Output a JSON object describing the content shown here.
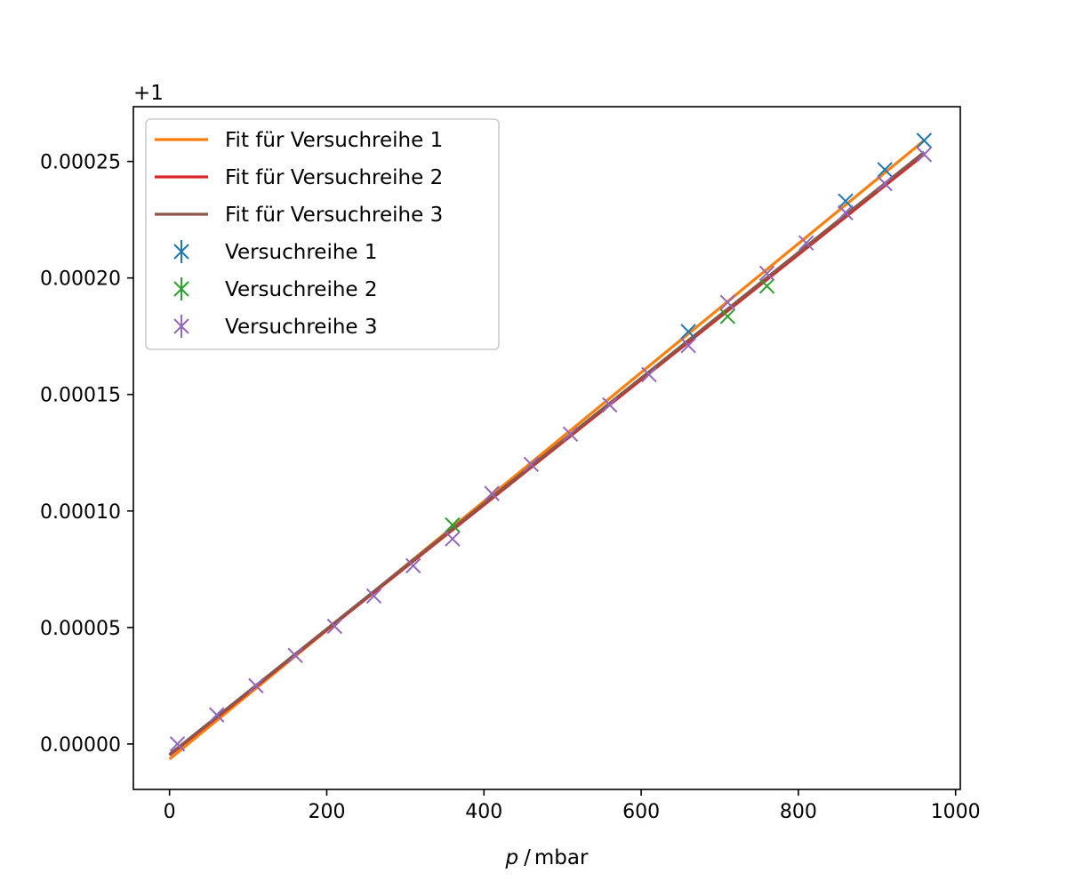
{
  "chart_data": {
    "type": "scatter",
    "title": "",
    "xlabel_var": "p",
    "xlabel_unit": "mbar",
    "ylabel": "",
    "y_offset_label": "+1",
    "xlim": [
      -46,
      1006
    ],
    "ylim": [
      -1.95e-05,
      0.0002735
    ],
    "xticks": [
      0,
      200,
      400,
      600,
      800,
      1000
    ],
    "xtick_labels": [
      "0",
      "200",
      "400",
      "600",
      "800",
      "1000"
    ],
    "yticks": [
      0,
      5e-05,
      0.0001,
      0.00015,
      0.0002,
      0.00025
    ],
    "ytick_labels": [
      "0.00000",
      "0.00005",
      "0.00010",
      "0.00015",
      "0.00020",
      "0.00025"
    ],
    "grid": false,
    "legend_position": "upper-left",
    "fits": [
      {
        "name": "Fit für Versuchreihe 1",
        "color": "#ff7f0e",
        "x": [
          0,
          960
        ],
        "y": [
          -6.5e-06,
          0.000259
        ]
      },
      {
        "name": "Fit für Versuchreihe 2",
        "color": "#d62728",
        "x": [
          0,
          960
        ],
        "y": [
          -4.8e-06,
          0.000253
        ]
      },
      {
        "name": "Fit für Versuchreihe 3",
        "color": "#8c564b",
        "x": [
          0,
          960
        ],
        "y": [
          -4.5e-06,
          0.000254
        ]
      }
    ],
    "series": [
      {
        "name": "Versuchreihe 1",
        "color": "#1f77b4",
        "x": [
          660,
          860,
          910,
          960
        ],
        "y": [
          0.000177,
          0.000233,
          0.0002465,
          0.000259
        ]
      },
      {
        "name": "Versuchreihe 2",
        "color": "#2ca02c",
        "x": [
          360,
          710,
          760
        ],
        "y": [
          9.4e-05,
          0.0001835,
          0.0001965
        ]
      },
      {
        "name": "Versuchreihe 3",
        "color": "#9467bd",
        "x": [
          10,
          60,
          110,
          160,
          210,
          260,
          310,
          360,
          410,
          460,
          510,
          560,
          610,
          660,
          710,
          760,
          810,
          860,
          910,
          960
        ],
        "y": [
          0.0,
          1.25e-05,
          2.5e-05,
          3.8e-05,
          5.05e-05,
          6.35e-05,
          7.65e-05,
          8.8e-05,
          0.0001075,
          0.00012,
          0.000133,
          0.0001455,
          0.0001585,
          0.000171,
          0.0001895,
          0.000202,
          0.000215,
          0.000228,
          0.0002405,
          0.000253
        ]
      }
    ]
  }
}
